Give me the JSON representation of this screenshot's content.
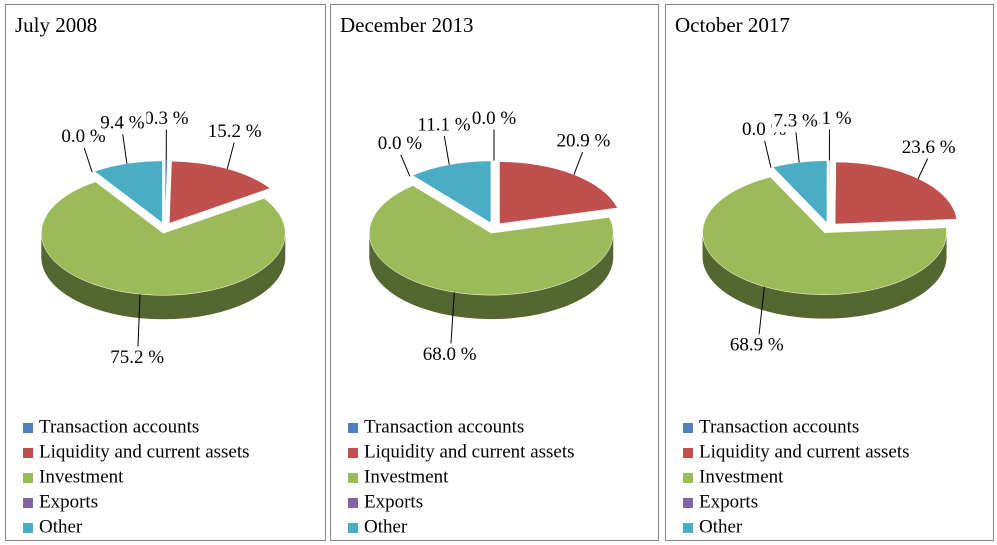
{
  "chart_data": [
    {
      "type": "pie",
      "title": "July 2008",
      "categories": [
        "Transaction accounts",
        "Liquidity and current assets",
        "Investment",
        "Exports",
        "Other"
      ],
      "values": [
        0.3,
        15.2,
        75.2,
        0.0,
        9.4
      ],
      "value_labels": [
        "0.3 %",
        "15.2 %",
        "75.2 %",
        "0.0 %",
        "9.4 %"
      ],
      "colors": [
        "#4f81bd",
        "#c0504d",
        "#9bbb59",
        "#8064a2",
        "#4bacc6"
      ]
    },
    {
      "type": "pie",
      "title": "December 2013",
      "categories": [
        "Transaction accounts",
        "Liquidity and current assets",
        "Investment",
        "Exports",
        "Other"
      ],
      "values": [
        0.0,
        20.9,
        68.0,
        0.0,
        11.1
      ],
      "value_labels": [
        "0.0 %",
        "20.9 %",
        "68.0 %",
        "0.0 %",
        "11.1 %"
      ],
      "colors": [
        "#4f81bd",
        "#c0504d",
        "#9bbb59",
        "#8064a2",
        "#4bacc6"
      ]
    },
    {
      "type": "pie",
      "title": "October 2017",
      "categories": [
        "Transaction accounts",
        "Liquidity and current assets",
        "Investment",
        "Exports",
        "Other"
      ],
      "values": [
        0.1,
        23.6,
        68.9,
        0.0,
        7.3
      ],
      "value_labels": [
        "0.1 %",
        "23.6 %",
        "68.9 %",
        "0.0 %",
        "7.3 %"
      ],
      "colors": [
        "#4f81bd",
        "#c0504d",
        "#9bbb59",
        "#8064a2",
        "#4bacc6"
      ]
    }
  ]
}
